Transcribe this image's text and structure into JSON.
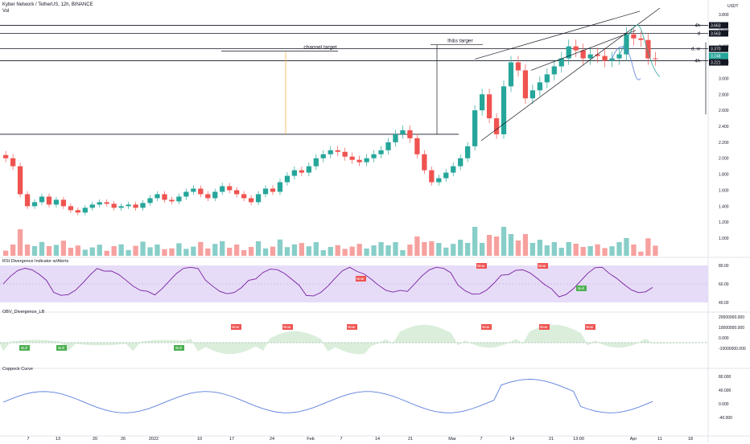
{
  "header": {
    "symbol": "Kyber Network / TetherUS, 12h, BINANCE",
    "vol_label": "Vol"
  },
  "currency": "USDT",
  "colors": {
    "up": "#26a69a",
    "down": "#ef5350",
    "rsi_band": "#e6dcf7",
    "rsi_line": "#7b1fa2",
    "obv_pos": "#4caf50",
    "obv_neg": "#ef5350",
    "coppock": "#5b7fde",
    "target": "#f5b54a"
  },
  "panes": {
    "rsi": {
      "title": "RSI Divergence Indicator w/Alerts",
      "ticks": [
        "80.00",
        "60.00",
        "40.00"
      ],
      "top": "80.00"
    },
    "obv": {
      "title": "OBV_Divergence_LB",
      "ticks": [
        "20000000.000",
        "10000000.000",
        "0.000",
        "-10000000.000"
      ]
    },
    "coppock": {
      "title": "Coppock Curve",
      "ticks": [
        "80.000",
        "40.000",
        "0.000",
        "-40.000"
      ]
    }
  },
  "annotations": {
    "channel_target": "channel target",
    "lhs_target": "lh&s targer"
  },
  "price_labels": [
    {
      "text": "3.663",
      "color": "#131722"
    },
    {
      "text": "3.563",
      "color": "#131722"
    },
    {
      "text": "3.370",
      "color": "#131722"
    },
    {
      "text": "3.248",
      "color": "#26a69a"
    },
    {
      "text": "3.221",
      "color": "#131722"
    }
  ],
  "level_tags": [
    "4h",
    "d",
    "d, w",
    "4h"
  ],
  "divergence_tags": {
    "rsi": [
      "Bear",
      "Bear",
      "Bear",
      "Bull"
    ],
    "obv": [
      "Bull",
      "Bull",
      "Bull",
      "Bear",
      "Bear",
      "Bear",
      "Bear",
      "Bear",
      "Bear"
    ]
  },
  "chart_data": {
    "type": "line",
    "title": "Kyber Network / TetherUS, 12h, BINANCE",
    "ylabel": "USDT",
    "ylim": [
      0.9,
      3.9
    ],
    "y_ticks": [
      "3.800",
      "3.600",
      "3.400",
      "3.200",
      "3.000",
      "2.800",
      "2.600",
      "2.400",
      "2.200",
      "2.000",
      "1.800",
      "1.600",
      "1.400",
      "1.200",
      "1.000"
    ],
    "x_ticks": [
      "7",
      "13",
      "20",
      "26",
      "2022",
      "10",
      "17",
      "24",
      "Feb",
      "7",
      "14",
      "21",
      "Mar",
      "7",
      "14",
      "21",
      "13:00",
      "Apr",
      "11",
      "18"
    ],
    "approx_close_series": {
      "name": "",
      "values": [
        2.0,
        1.9,
        1.55,
        1.4,
        1.45,
        1.52,
        1.42,
        1.48,
        1.4,
        1.35,
        1.32,
        1.38,
        1.42,
        1.45,
        1.43,
        1.38,
        1.4,
        1.42,
        1.38,
        1.44,
        1.5,
        1.55,
        1.48,
        1.46,
        1.52,
        1.58,
        1.62,
        1.55,
        1.5,
        1.58,
        1.65,
        1.6,
        1.55,
        1.5,
        1.45,
        1.55,
        1.62,
        1.58,
        1.7,
        1.78,
        1.85,
        1.82,
        1.9,
        2.0,
        2.05,
        2.1,
        2.08,
        2.02,
        1.98,
        1.95,
        2.0,
        2.05,
        2.1,
        2.2,
        2.3,
        2.35,
        2.25,
        2.05,
        1.85,
        1.7,
        1.75,
        1.82,
        1.9,
        2.0,
        2.15,
        2.6,
        2.8,
        2.5,
        2.3,
        2.9,
        3.2,
        3.1,
        2.75,
        2.85,
        2.95,
        3.05,
        3.15,
        3.25,
        3.4,
        3.35,
        3.25,
        3.3,
        3.28,
        3.22,
        3.25,
        3.3,
        3.55,
        3.5,
        3.48,
        3.25,
        3.24
      ]
    },
    "horizontal_levels": [
      3.663,
      3.563,
      3.37,
      3.221,
      2.3
    ],
    "channel_target": {
      "label": "channel target",
      "y": 3.35
    },
    "lhs_target": {
      "label": "lh&s targer",
      "y": 3.41
    }
  }
}
